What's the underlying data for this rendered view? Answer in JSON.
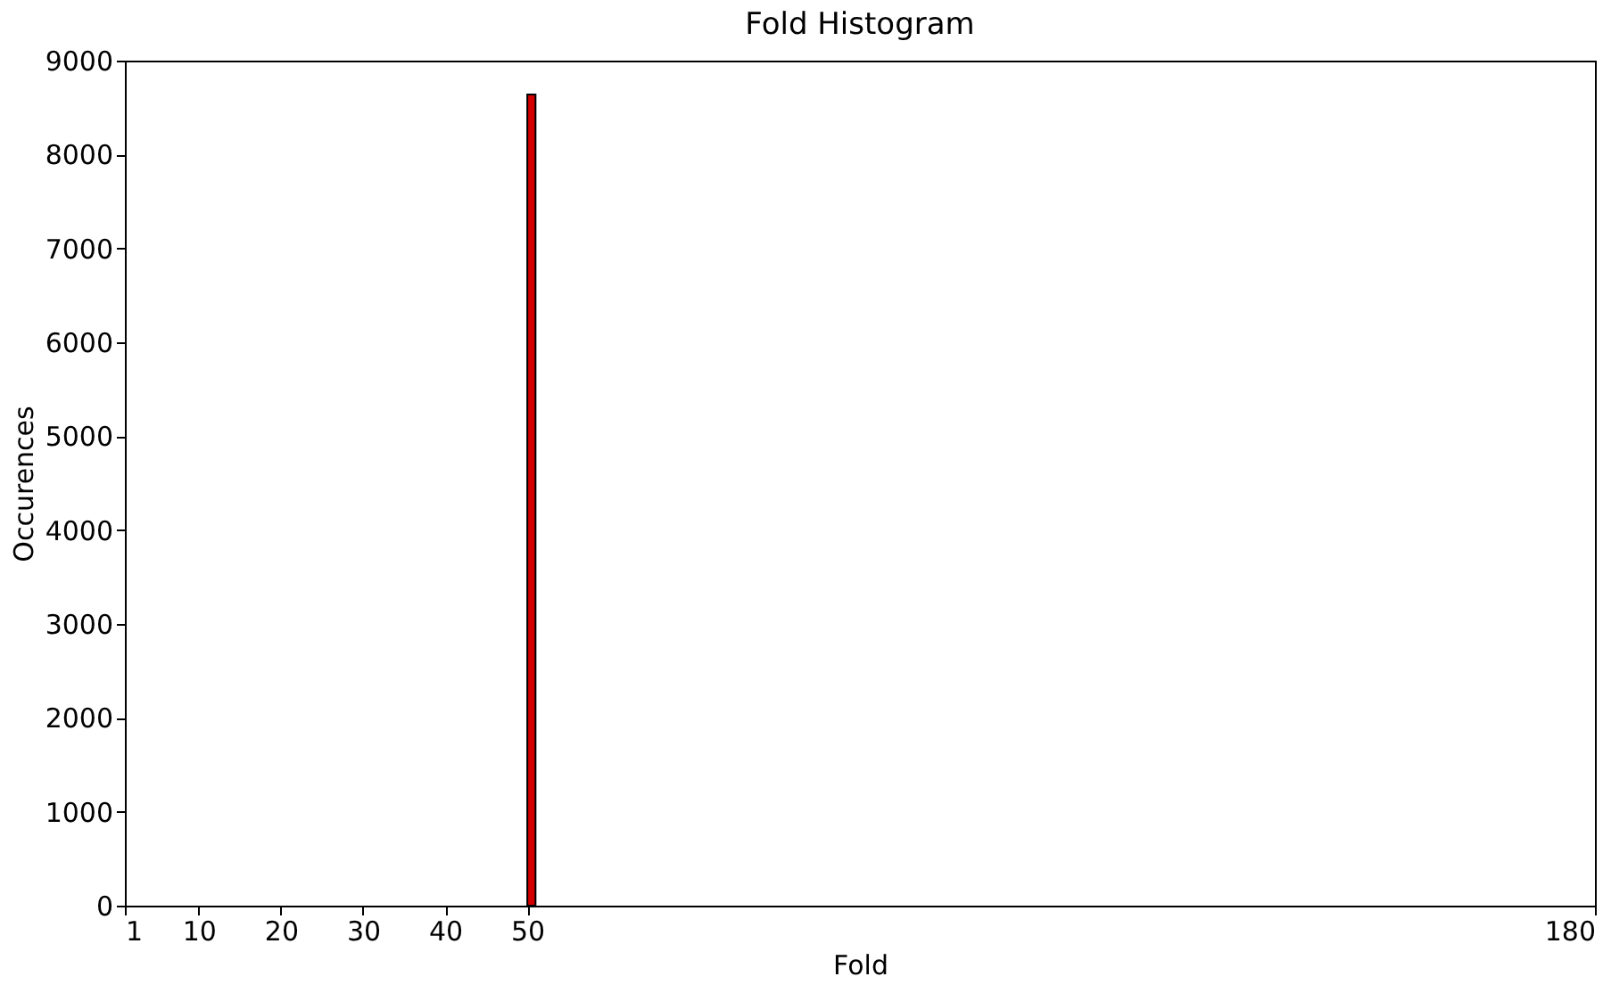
{
  "chart_data": {
    "type": "histogram",
    "title": "Fold Histogram",
    "xlabel": "Fold",
    "ylabel": "Occurences",
    "bins": [
      50,
      51
    ],
    "values": [
      8640
    ],
    "color": "#d40000",
    "xlim": [
      1,
      180
    ],
    "xticks": [
      1,
      10,
      20,
      30,
      40,
      50,
      180
    ],
    "ylim": [
      0,
      9000
    ],
    "yticks": [
      0,
      1000,
      2000,
      3000,
      4000,
      5000,
      6000,
      7000,
      8000,
      9000
    ],
    "grid": false
  }
}
